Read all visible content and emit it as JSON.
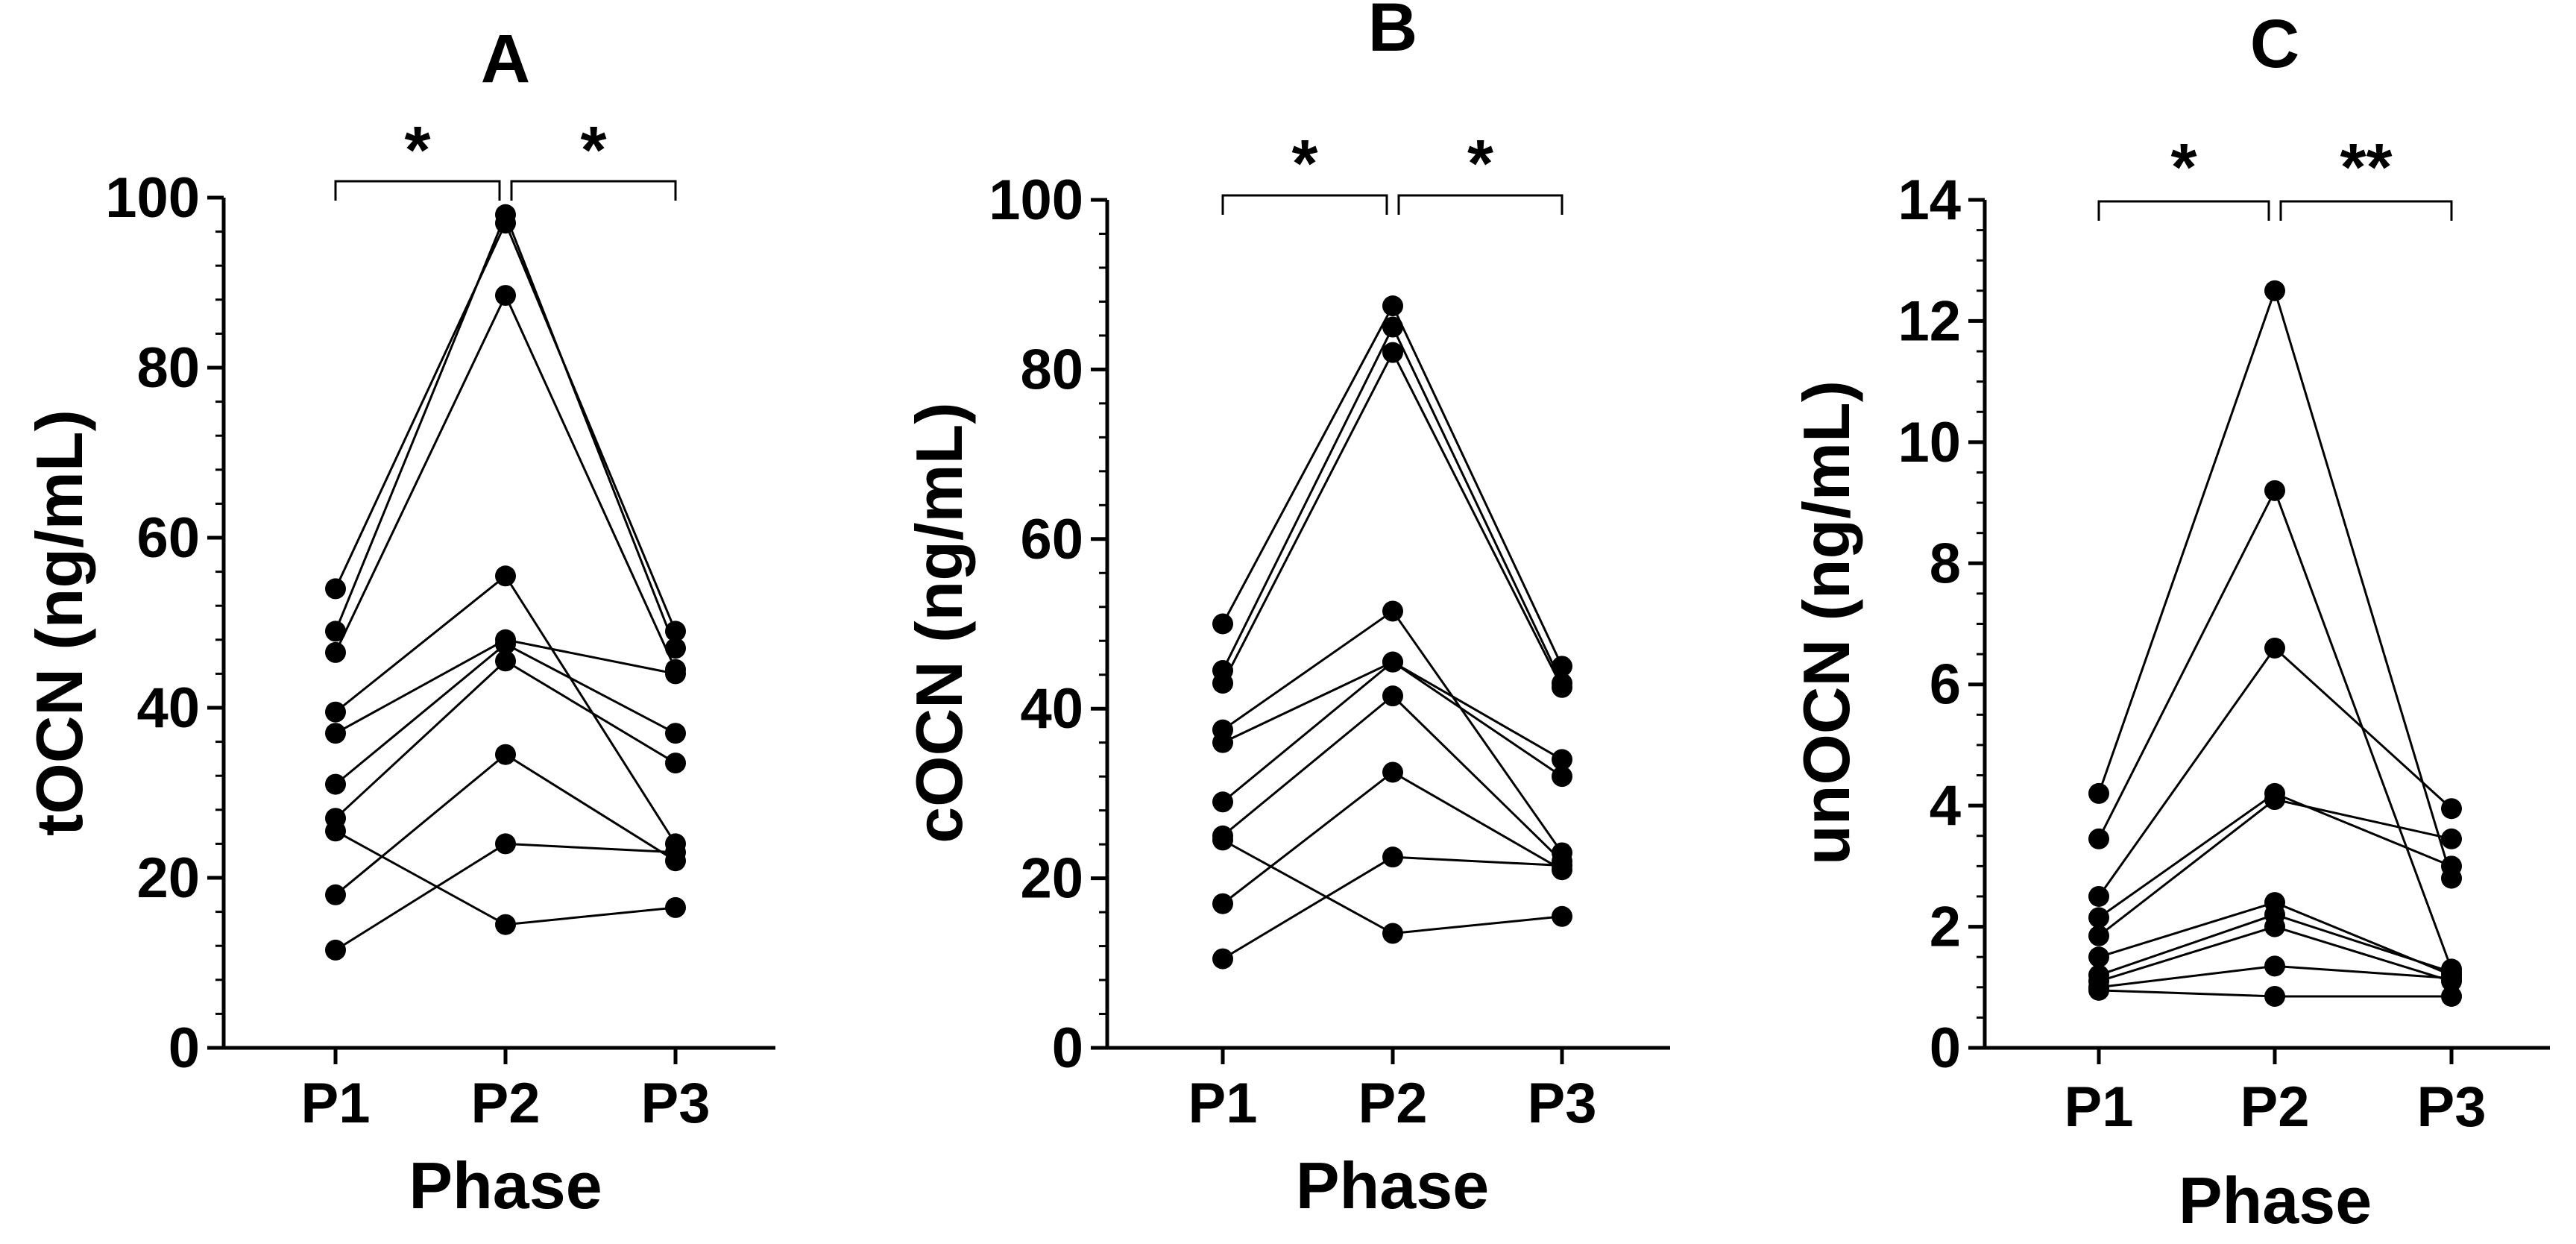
{
  "chart_data": [
    {
      "type": "line",
      "panel_label": "A",
      "xlabel": "Phase",
      "ylabel": "tOCN (ng/mL)",
      "categories": [
        "P1",
        "P2",
        "P3"
      ],
      "ylim": [
        0,
        100
      ],
      "yticks": [
        0,
        20,
        40,
        60,
        80,
        100
      ],
      "ytick_labels": [
        "0",
        "20",
        "40",
        "60",
        "80",
        "100"
      ],
      "series": [
        {
          "values": [
            54,
            97,
            49
          ]
        },
        {
          "values": [
            49,
            98,
            47
          ]
        },
        {
          "values": [
            46.5,
            88.5,
            44.5
          ]
        },
        {
          "values": [
            39.5,
            55.5,
            24
          ]
        },
        {
          "values": [
            37,
            48,
            44
          ]
        },
        {
          "values": [
            31,
            47.5,
            37
          ]
        },
        {
          "values": [
            27,
            45.5,
            33.5
          ]
        },
        {
          "values": [
            25.5,
            14.5,
            16.5
          ]
        },
        {
          "values": [
            18,
            34.5,
            22
          ]
        },
        {
          "values": [
            11.5,
            24,
            23
          ]
        }
      ],
      "significance": [
        {
          "from": "P1",
          "to": "P2",
          "label": "*"
        },
        {
          "from": "P2",
          "to": "P3",
          "label": "*"
        }
      ]
    },
    {
      "type": "line",
      "panel_label": "B",
      "xlabel": "Phase",
      "ylabel": "cOCN (ng/mL)",
      "categories": [
        "P1",
        "P2",
        "P3"
      ],
      "ylim": [
        0,
        100
      ],
      "yticks": [
        0,
        20,
        40,
        60,
        80,
        100
      ],
      "ytick_labels": [
        "0",
        "20",
        "40",
        "60",
        "80",
        "100"
      ],
      "series": [
        {
          "values": [
            50,
            87.5,
            45
          ]
        },
        {
          "values": [
            44.5,
            85,
            43
          ]
        },
        {
          "values": [
            43,
            82,
            42.5
          ]
        },
        {
          "values": [
            37.5,
            51.5,
            23
          ]
        },
        {
          "values": [
            36,
            45.5,
            34
          ]
        },
        {
          "values": [
            29,
            45.5,
            32
          ]
        },
        {
          "values": [
            25,
            41.5,
            22
          ]
        },
        {
          "values": [
            24.5,
            13.5,
            15.5
          ]
        },
        {
          "values": [
            17,
            32.5,
            21
          ]
        },
        {
          "values": [
            10.5,
            22.5,
            21.5
          ]
        }
      ],
      "significance": [
        {
          "from": "P1",
          "to": "P2",
          "label": "*"
        },
        {
          "from": "P2",
          "to": "P3",
          "label": "*"
        }
      ]
    },
    {
      "type": "line",
      "panel_label": "C",
      "xlabel": "Phase",
      "ylabel": "unOCN (ng/mL)",
      "categories": [
        "P1",
        "P2",
        "P3"
      ],
      "ylim": [
        0,
        14
      ],
      "yticks": [
        0,
        2,
        4,
        6,
        8,
        10,
        12,
        14
      ],
      "ytick_labels": [
        "0",
        "2",
        "4",
        "6",
        "8",
        "10",
        "12",
        "14"
      ],
      "series": [
        {
          "values": [
            4.2,
            12.5,
            2.8
          ]
        },
        {
          "values": [
            3.45,
            9.2,
            1.3
          ]
        },
        {
          "values": [
            2.5,
            6.6,
            3.95
          ]
        },
        {
          "values": [
            2.15,
            4.2,
            3.0
          ]
        },
        {
          "values": [
            1.85,
            4.1,
            3.45
          ]
        },
        {
          "values": [
            1.5,
            2.4,
            1.2
          ]
        },
        {
          "values": [
            1.2,
            2.2,
            1.25
          ]
        },
        {
          "values": [
            1.1,
            2.0,
            1.1
          ]
        },
        {
          "values": [
            1.0,
            1.35,
            1.15
          ]
        },
        {
          "values": [
            0.95,
            0.85,
            0.85
          ]
        }
      ],
      "significance": [
        {
          "from": "P1",
          "to": "P2",
          "label": "*"
        },
        {
          "from": "P2",
          "to": "P3",
          "label": "**"
        }
      ]
    }
  ]
}
